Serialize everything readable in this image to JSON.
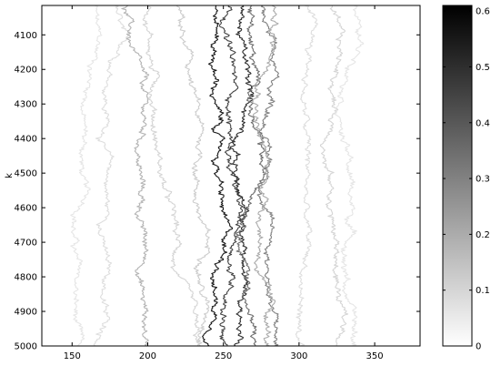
{
  "chart_data": [
    {
      "type": "heatmap",
      "title": "",
      "xlabel": "",
      "ylabel": "k",
      "xlim": [
        130,
        380
      ],
      "ylim": [
        4015,
        5000
      ],
      "y_inverted": true,
      "grid": false,
      "x_ticks": [
        150,
        200,
        250,
        300,
        350
      ],
      "y_ticks": [
        4100,
        4200,
        4300,
        4400,
        4500,
        4600,
        4700,
        4800,
        4900,
        5000
      ],
      "colormap": "gray-reversed",
      "color_range": [
        0,
        0.61
      ],
      "colorbar_ticks": [
        0,
        0.1,
        0.2,
        0.3,
        0.4,
        0.5,
        0.6
      ],
      "colorbar_position": "right",
      "tracks": [
        {
          "x_at_k4015": 165,
          "x_at_k5000": 148,
          "intensity": 0.06
        },
        {
          "x_at_k4015": 178,
          "x_at_k5000": 170,
          "intensity": 0.08
        },
        {
          "x_at_k4015": 185,
          "x_at_k5000": 200,
          "intensity": 0.18
        },
        {
          "x_at_k4015": 203,
          "x_at_k5000": 222,
          "intensity": 0.1
        },
        {
          "x_at_k4015": 220,
          "x_at_k5000": 245,
          "intensity": 0.12
        },
        {
          "x_at_k4015": 245,
          "x_at_k5000": 247,
          "intensity": 0.55
        },
        {
          "x_at_k4015": 255,
          "x_at_k5000": 256,
          "intensity": 0.45
        },
        {
          "x_at_k4015": 262,
          "x_at_k5000": 262,
          "intensity": 0.5
        },
        {
          "x_at_k4015": 268,
          "x_at_k5000": 272,
          "intensity": 0.35
        },
        {
          "x_at_k4015": 276,
          "x_at_k5000": 285,
          "intensity": 0.3
        },
        {
          "x_at_k4015": 283,
          "x_at_k5000": 278,
          "intensity": 0.2
        },
        {
          "x_at_k4015": 305,
          "x_at_k5000": 300,
          "intensity": 0.08
        },
        {
          "x_at_k4015": 320,
          "x_at_k5000": 328,
          "intensity": 0.1
        },
        {
          "x_at_k4015": 338,
          "x_at_k5000": 335,
          "intensity": 0.06
        }
      ]
    }
  ]
}
